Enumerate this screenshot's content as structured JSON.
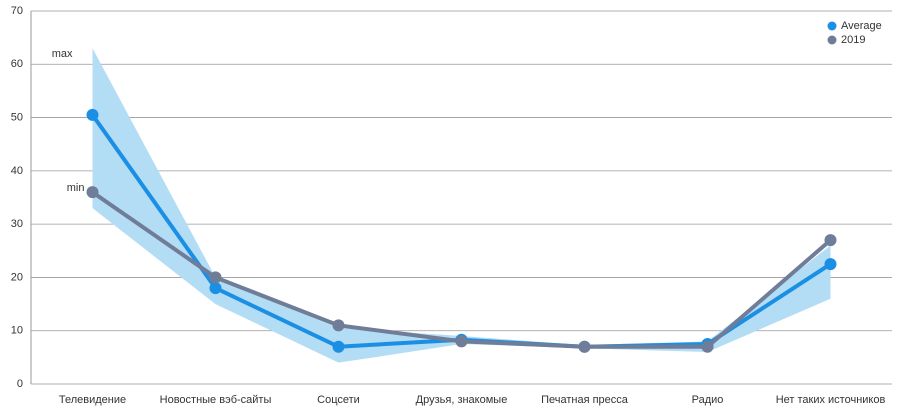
{
  "chart_data": {
    "type": "line",
    "categories": [
      "Телевидение",
      "Новостные вэб-сайты",
      "Соцсети",
      "Друзья, знакомые",
      "Печатная пресса",
      "Радио",
      "Нет таких источников"
    ],
    "series": [
      {
        "name": "Average",
        "color": "#1a8fe3",
        "values": [
          50.5,
          18,
          7,
          8.3,
          7,
          7.5,
          22.5
        ]
      },
      {
        "name": "2019",
        "color": "#6f7d99",
        "values": [
          36,
          20,
          11,
          8,
          7,
          7,
          27
        ]
      }
    ],
    "band": {
      "color": "#b3dcf5",
      "upper": [
        63,
        20,
        10.5,
        9,
        7.3,
        8,
        26
      ],
      "lower": [
        33,
        15,
        4,
        7.5,
        6.7,
        6,
        16
      ]
    },
    "annotations": [
      {
        "text": "max"
      },
      {
        "text": "min"
      }
    ],
    "ylim": [
      0,
      70
    ],
    "yticks": [
      0,
      10,
      20,
      30,
      40,
      50,
      60,
      70
    ],
    "grid": true,
    "legend": "top-right"
  }
}
